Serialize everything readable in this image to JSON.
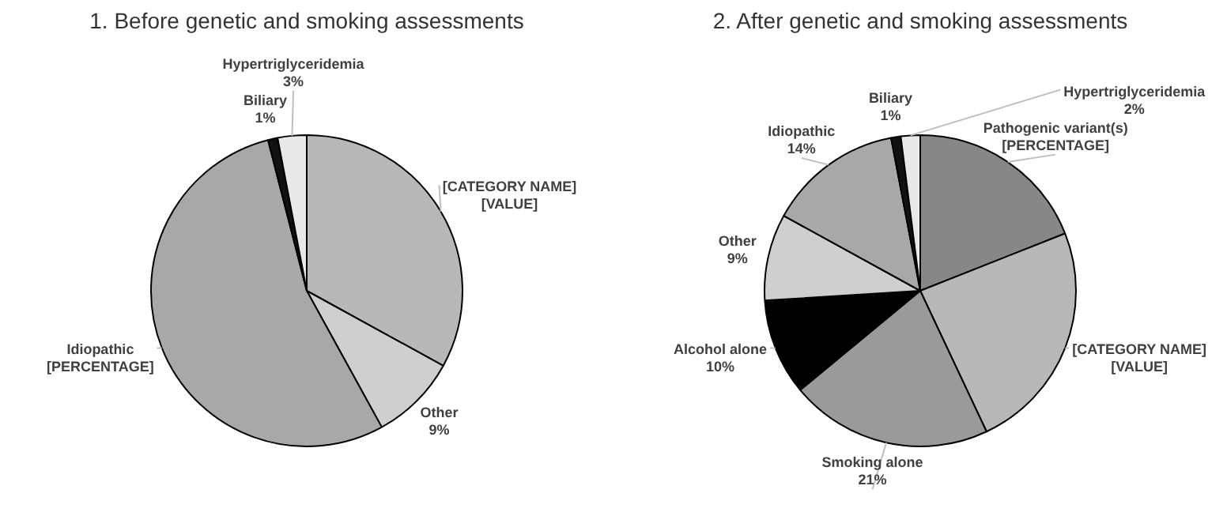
{
  "chart_data": [
    {
      "type": "pie",
      "title": "1. Before genetic and smoking assessments",
      "categories": [
        "[CATEGORY NAME]",
        "Other",
        "Idiopathic",
        "Biliary",
        "Hypertriglyceridemia"
      ],
      "values": [
        33,
        9,
        54,
        1,
        3
      ],
      "colors": [
        "#b8b8b8",
        "#cfcfcf",
        "#a8a8a8",
        "#111111",
        "#e8e8e8"
      ],
      "value_labels": [
        "[VALUE]",
        "9%",
        "[PERCENTAGE]",
        "1%",
        "3%"
      ]
    },
    {
      "type": "pie",
      "title": "2. After genetic and smoking assessments",
      "categories": [
        "Pathogenic variant(s)",
        "[CATEGORY NAME]",
        "Smoking alone",
        "Alcohol alone",
        "Other",
        "Idiopathic",
        "Biliary",
        "Hypertriglyceridemia"
      ],
      "values": [
        19,
        24,
        21,
        10,
        9,
        14,
        1,
        2
      ],
      "colors": [
        "#878787",
        "#b8b8b8",
        "#9a9a9a",
        "#000000",
        "#cfcfcf",
        "#a8a8a8",
        "#111111",
        "#e8e8e8"
      ],
      "value_labels": [
        "[PERCENTAGE]",
        "[VALUE]",
        "21%",
        "10%",
        "9%",
        "14%",
        "1%",
        "2%"
      ]
    }
  ]
}
